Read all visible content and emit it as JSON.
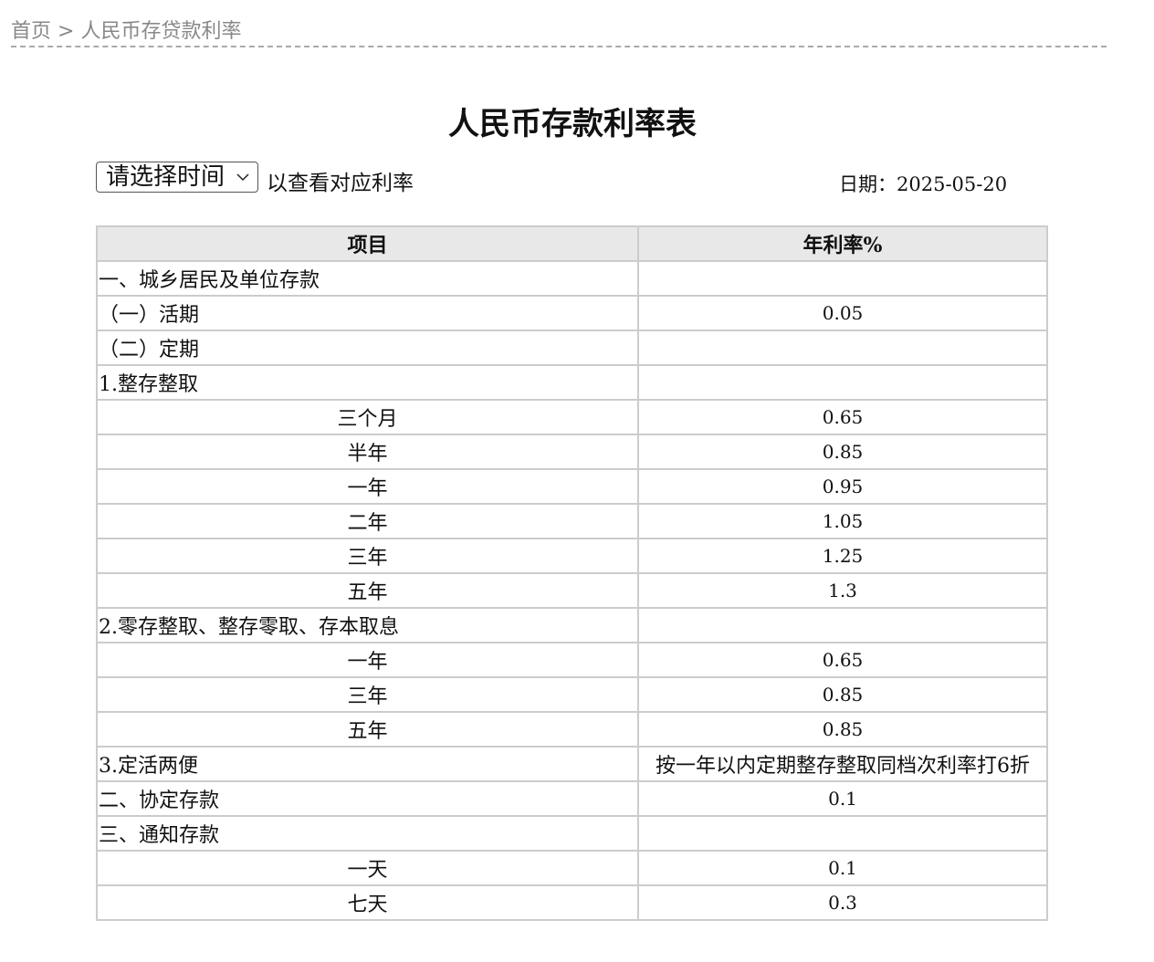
{
  "breadcrumb": {
    "home": "首页",
    "separator": ">",
    "current": "人民币存贷款利率"
  },
  "title": "人民币存款利率表",
  "select": {
    "value": "请选择时间"
  },
  "hint": "以查看对应利率",
  "date": {
    "label": "日期：",
    "value": "2025-05-20"
  },
  "table": {
    "headers": [
      "项目",
      "年利率%"
    ],
    "rows": [
      {
        "item": "一、城乡居民及单位存款",
        "rate": "",
        "align": "l"
      },
      {
        "item": "（一）活期",
        "rate": "0.05",
        "align": "l"
      },
      {
        "item": "（二）定期",
        "rate": "",
        "align": "l"
      },
      {
        "item": "1.整存整取",
        "rate": "",
        "align": "l"
      },
      {
        "item": "三个月",
        "rate": "0.65",
        "align": "c"
      },
      {
        "item": "半年",
        "rate": "0.85",
        "align": "c"
      },
      {
        "item": "一年",
        "rate": "0.95",
        "align": "c"
      },
      {
        "item": "二年",
        "rate": "1.05",
        "align": "c"
      },
      {
        "item": "三年",
        "rate": "1.25",
        "align": "c"
      },
      {
        "item": "五年",
        "rate": "1.3",
        "align": "c"
      },
      {
        "item": "2.零存整取、整存零取、存本取息",
        "rate": "",
        "align": "l"
      },
      {
        "item": "一年",
        "rate": "0.65",
        "align": "c"
      },
      {
        "item": "三年",
        "rate": "0.85",
        "align": "c"
      },
      {
        "item": "五年",
        "rate": "0.85",
        "align": "c"
      },
      {
        "item": "3.定活两便",
        "rate": "按一年以内定期整存整取同档次利率打6折",
        "align": "l"
      },
      {
        "item": "二、协定存款",
        "rate": "0.1",
        "align": "l"
      },
      {
        "item": "三、通知存款",
        "rate": "",
        "align": "l"
      },
      {
        "item": "一天",
        "rate": "0.1",
        "align": "c"
      },
      {
        "item": "七天",
        "rate": "0.3",
        "align": "c"
      }
    ]
  }
}
